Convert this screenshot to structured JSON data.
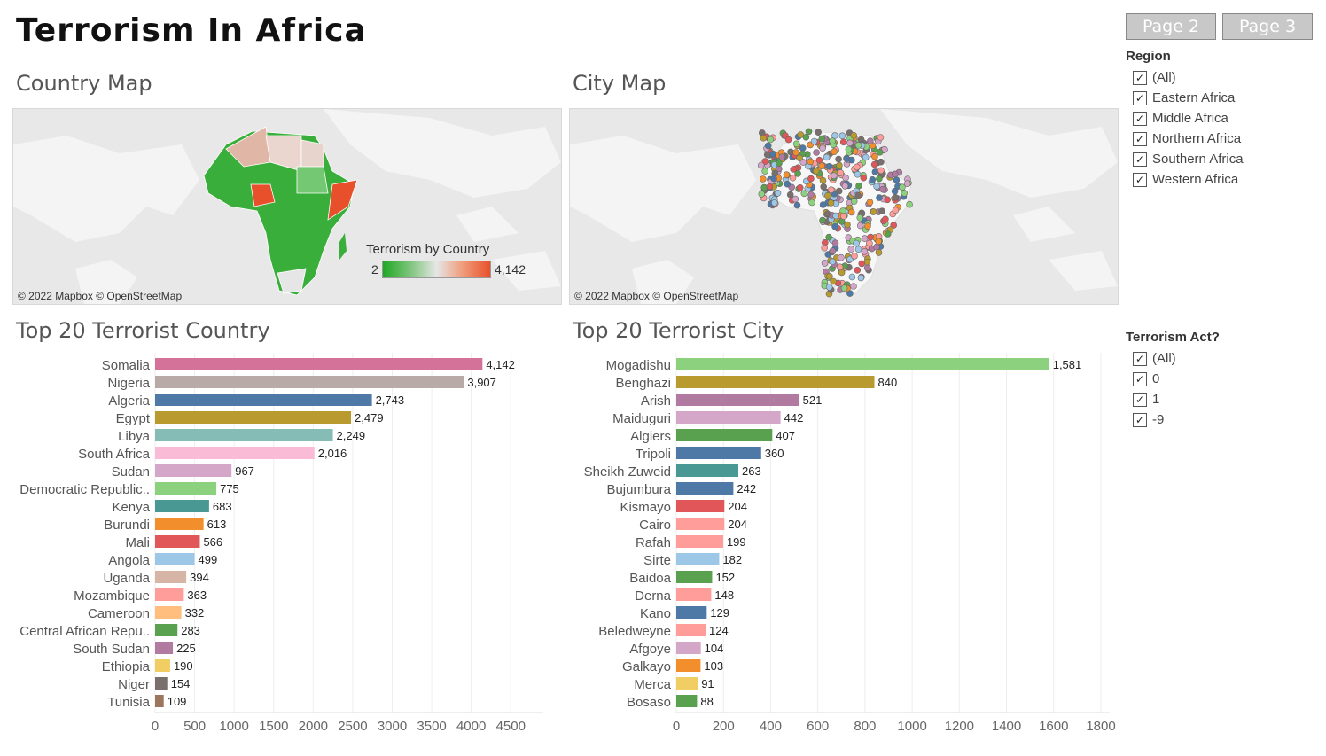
{
  "title": "Terrorism In Africa",
  "nav": {
    "page2": "Page 2",
    "page3": "Page 3"
  },
  "country_map": {
    "title": "Country Map",
    "copyright": "© 2022 Mapbox © OpenStreetMap",
    "legend": {
      "title": "Terrorism by Country",
      "min": "2",
      "max": "4,142",
      "colors": [
        "#1fa824",
        "#e6e6e6",
        "#e8502c"
      ]
    }
  },
  "city_map": {
    "title": "City Map",
    "copyright": "© 2022 Mapbox © OpenStreetMap"
  },
  "filters": {
    "region": {
      "title": "Region",
      "items": [
        "(All)",
        "Eastern Africa",
        "Middle Africa",
        "Northern Africa",
        "Southern Africa",
        "Western Africa"
      ]
    },
    "terrorism_act": {
      "title": "Terrorism Act?",
      "items": [
        "(All)",
        "0",
        "1",
        "-9"
      ]
    }
  },
  "chart_data": [
    {
      "type": "bar",
      "orientation": "horizontal",
      "title": "Top 20 Terrorist Country",
      "categories": [
        "Somalia",
        "Nigeria",
        "Algeria",
        "Egypt",
        "Libya",
        "South Africa",
        "Sudan",
        "Democratic Republic..",
        "Kenya",
        "Burundi",
        "Mali",
        "Angola",
        "Uganda",
        "Mozambique",
        "Cameroon",
        "Central African Repu..",
        "South Sudan",
        "Ethiopia",
        "Niger",
        "Tunisia"
      ],
      "values": [
        4142,
        3907,
        2743,
        2479,
        2249,
        2016,
        967,
        775,
        683,
        613,
        566,
        499,
        394,
        363,
        332,
        283,
        225,
        190,
        154,
        109
      ],
      "value_labels": [
        "4,142",
        "3,907",
        "2,743",
        "2,479",
        "2,249",
        "2,016",
        "967",
        "775",
        "683",
        "613",
        "566",
        "499",
        "394",
        "363",
        "332",
        "283",
        "225",
        "190",
        "154",
        "109"
      ],
      "colors": [
        "#d4729a",
        "#b8aaa7",
        "#4e79a7",
        "#b99a2f",
        "#86bcb6",
        "#f9bbd5",
        "#d4a6c8",
        "#8cd17d",
        "#499894",
        "#f28e2b",
        "#e15759",
        "#9dc7e7",
        "#d7b5a6",
        "#ff9d9a",
        "#ffbe7d",
        "#59a14f",
        "#b07aa1",
        "#f1ce63",
        "#79706e",
        "#9c755f"
      ],
      "xticks": [
        "0",
        "500",
        "1000",
        "1500",
        "2000",
        "2500",
        "3000",
        "3500",
        "4000",
        "4500"
      ],
      "xlim": [
        0,
        4800
      ]
    },
    {
      "type": "bar",
      "orientation": "horizontal",
      "title": "Top 20 Terrorist City",
      "categories": [
        "Mogadishu",
        "Benghazi",
        "Arish",
        "Maiduguri",
        "Algiers",
        "Tripoli",
        "Sheikh Zuweid",
        "Bujumbura",
        "Kismayo",
        "Cairo",
        "Rafah",
        "Sirte",
        "Baidoa",
        "Derna",
        "Kano",
        "Beledweyne",
        "Afgoye",
        "Galkayo",
        "Merca",
        "Bosaso"
      ],
      "values": [
        1581,
        840,
        521,
        442,
        407,
        360,
        263,
        242,
        204,
        204,
        199,
        182,
        152,
        148,
        129,
        124,
        104,
        103,
        91,
        88
      ],
      "value_labels": [
        "1,581",
        "840",
        "521",
        "442",
        "407",
        "360",
        "263",
        "242",
        "204",
        "204",
        "199",
        "182",
        "152",
        "148",
        "129",
        "124",
        "104",
        "103",
        "91",
        "88"
      ],
      "colors": [
        "#8cd17d",
        "#b99a2f",
        "#b07aa1",
        "#d4a6c8",
        "#59a14f",
        "#4e79a7",
        "#499894",
        "#4e79a7",
        "#e15759",
        "#ff9d9a",
        "#ff9d9a",
        "#9dc7e7",
        "#59a14f",
        "#ff9d9a",
        "#4e79a7",
        "#ff9d9a",
        "#d4a6c8",
        "#f28e2b",
        "#f1ce63",
        "#59a14f"
      ],
      "xticks": [
        "0",
        "200",
        "400",
        "600",
        "800",
        "1000",
        "1200",
        "1400",
        "1600",
        "1800"
      ],
      "xlim": [
        0,
        1800
      ]
    }
  ]
}
